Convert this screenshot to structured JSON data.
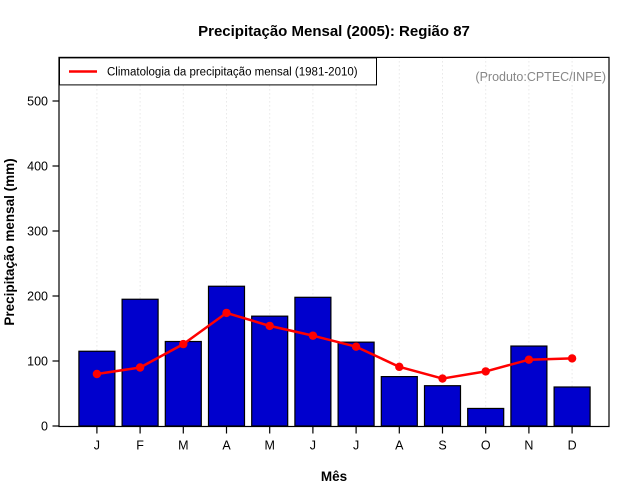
{
  "title": "Precipitação Mensal (2005): Região 87",
  "annotation": "(Produto:CPTEC/INPE)",
  "colors": {
    "bar_fill": "#0000cd",
    "bar_border": "#000000",
    "line": "#ff0000",
    "grid": "#dcdcdc",
    "axis": "#000000",
    "annotation_text": "#878787",
    "background": "#ffffff"
  },
  "chart_data": {
    "type": "bar",
    "title": "Precipitação Mensal (2005): Região 87",
    "xlabel": "Mês",
    "ylabel": "Precipitação mensal (mm)",
    "categories": [
      "J",
      "F",
      "M",
      "A",
      "M",
      "J",
      "J",
      "A",
      "S",
      "O",
      "N",
      "D"
    ],
    "series": [
      {
        "name": "Precipitação mensal (2005)",
        "type": "bar",
        "color": "#0000cd",
        "values": [
          115,
          195,
          130,
          215,
          169,
          198,
          129,
          76,
          62,
          27,
          123,
          60
        ]
      },
      {
        "name": "Climatologia da precipitação mensal (1981-2010)",
        "type": "line",
        "color": "#ff0000",
        "values": [
          80,
          90,
          126,
          174,
          154,
          139,
          122,
          91,
          73,
          84,
          102,
          104
        ]
      }
    ],
    "ylim": [
      0,
      567
    ],
    "yticks": [
      0,
      100,
      200,
      300,
      400,
      500
    ],
    "grid": "vertical-dotted",
    "legend_position": "top-left",
    "legend_entries": [
      "Climatologia da precipitação mensal (1981-2010)"
    ]
  }
}
